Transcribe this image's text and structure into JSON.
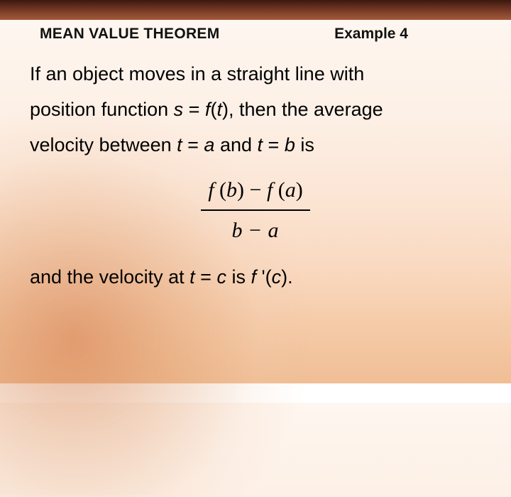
{
  "colors": {
    "topbar_gradient": [
      "#3a1810",
      "#6b3220",
      "#a45a3a"
    ],
    "bg_gradient": [
      "#ffffff",
      "#fef6f0",
      "#fdf0e6",
      "#fce6d6",
      "#f9d9c0",
      "#f5cba8",
      "#f0be95"
    ],
    "text": "#000000"
  },
  "typography": {
    "header_fontsize": 21,
    "body_fontsize": 27,
    "formula_fontsize": 30,
    "body_lineheight": 1.7,
    "formula_family": "Times New Roman"
  },
  "header": {
    "left": "MEAN VALUE THEOREM",
    "right": "Example 4"
  },
  "body": {
    "line1": "If an object moves in a straight line with",
    "line2_a": "position function ",
    "line2_s": "s",
    "line2_eq": " = ",
    "line2_f": "f",
    "line2_openp": "(",
    "line2_t": "t",
    "line2_closep": ")",
    "line2_b": ", then the average",
    "line3_a": "velocity between ",
    "line3_t1": "t",
    "line3_eq1": " = ",
    "line3_a_var": "a",
    "line3_and": " and ",
    "line3_t2": "t",
    "line3_eq2": " = ",
    "line3_b_var": "b",
    "line3_is": " is"
  },
  "formula": {
    "num_f1": "f ",
    "num_ob": "(",
    "num_b": "b",
    "num_cb": ")",
    "num_minus": " − ",
    "num_f2": "f ",
    "num_oa": "(",
    "num_a": "a",
    "num_ca": ")",
    "den_b": "b",
    "den_minus": " − ",
    "den_a": "a"
  },
  "closing": {
    "a": "and the velocity at ",
    "t": "t",
    "eq": " = ",
    "c": "c",
    "is": " is ",
    "f": "f ",
    "prime": "'(",
    "c2": "c",
    "close": ")."
  }
}
